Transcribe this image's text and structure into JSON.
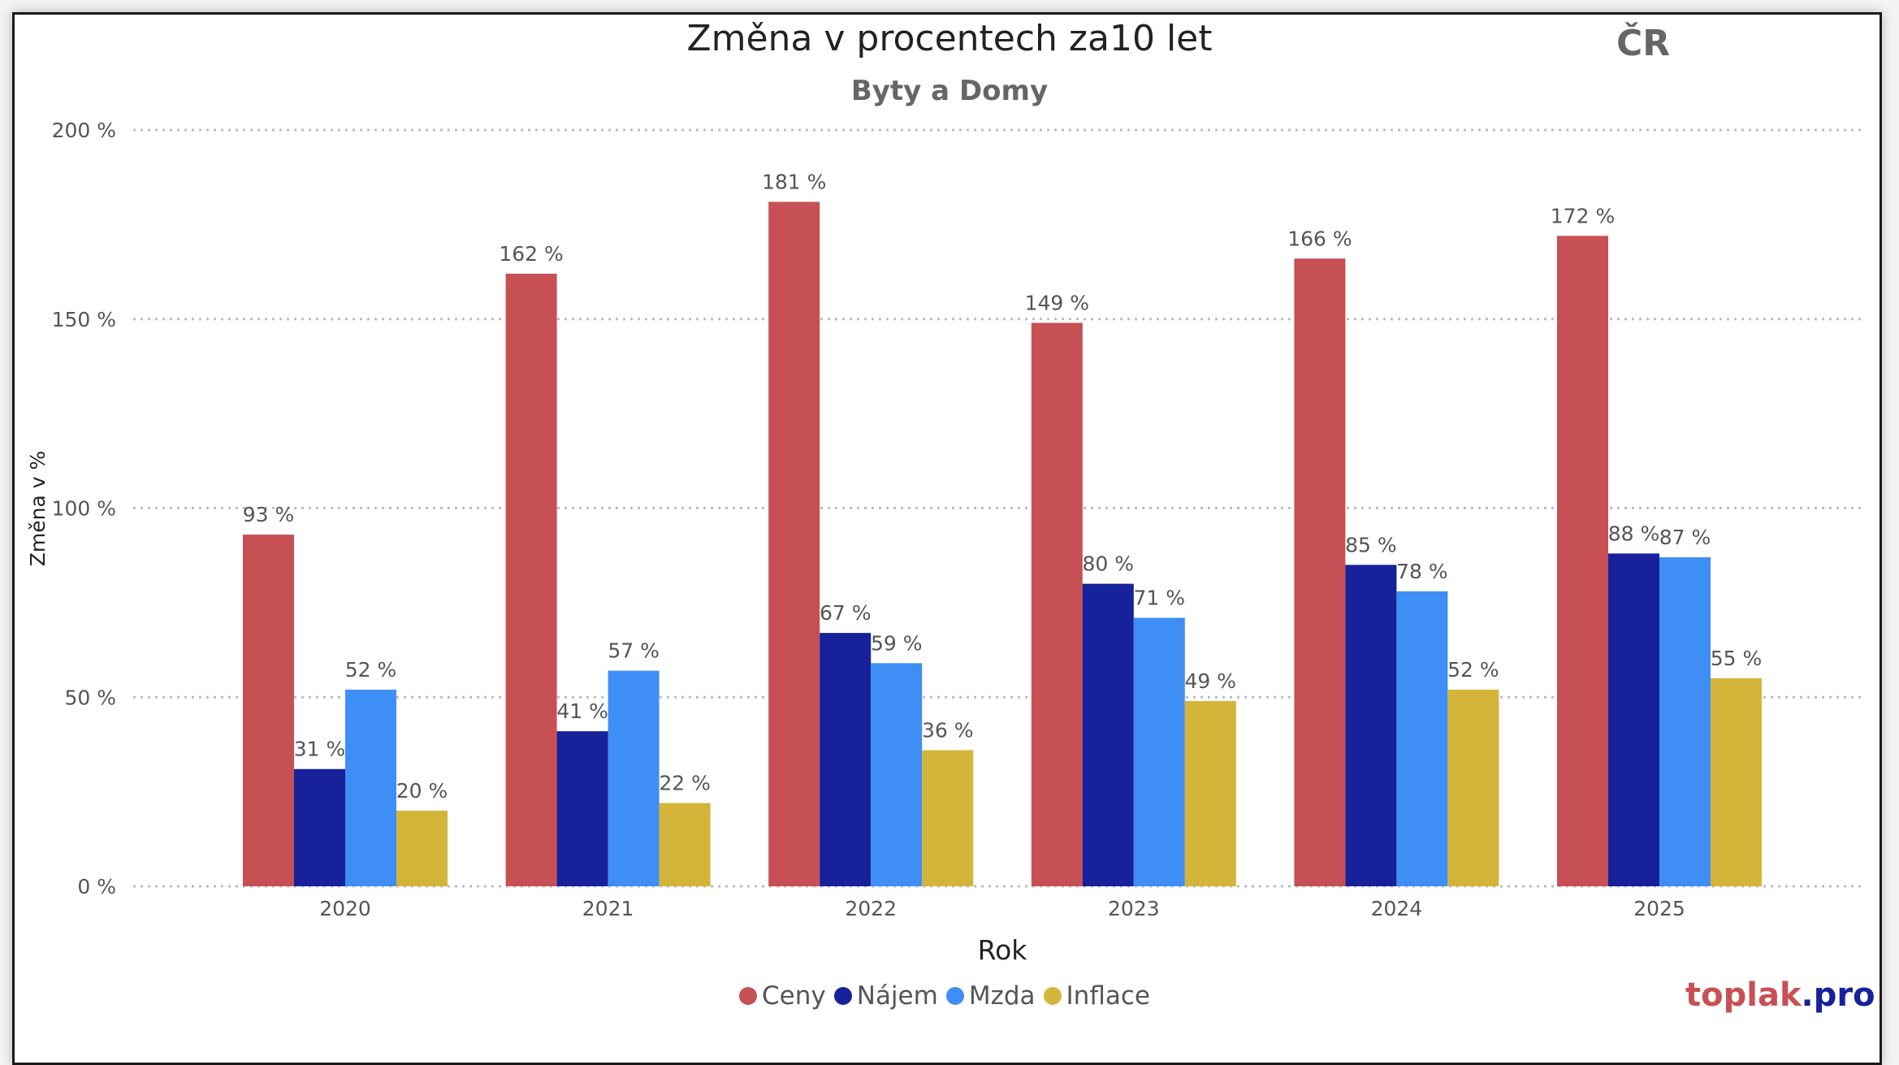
{
  "header": {
    "title": "Změna v procentech za10 let",
    "region": "ČR",
    "subtitle": "Byty a Domy"
  },
  "brand": {
    "part1": "toplak",
    "part2": ".pro"
  },
  "chart_data": {
    "type": "bar",
    "title": "Změna v procentech za10 let",
    "subtitle": "Byty a Domy",
    "xlabel": "Rok",
    "ylabel": "Změna v %",
    "ylim": [
      0,
      200
    ],
    "yticks": [
      0,
      50,
      100,
      150,
      200
    ],
    "ytick_labels": [
      "0 %",
      "50 %",
      "100 %",
      "150 %",
      "200 %"
    ],
    "grid": true,
    "legend_position": "bottom-center",
    "categories": [
      "2020",
      "2021",
      "2022",
      "2023",
      "2024",
      "2025"
    ],
    "series": [
      {
        "name": "Ceny",
        "color": "#C75055",
        "values": [
          93,
          162,
          181,
          149,
          166,
          172
        ]
      },
      {
        "name": "Nájem",
        "color": "#16219A",
        "values": [
          31,
          41,
          67,
          80,
          85,
          88
        ]
      },
      {
        "name": "Mzda",
        "color": "#3F8EF5",
        "values": [
          52,
          57,
          59,
          71,
          78,
          87
        ]
      },
      {
        "name": "Inflace",
        "color": "#D4B53A",
        "values": [
          20,
          22,
          36,
          49,
          52,
          55
        ]
      }
    ],
    "value_suffix": " %"
  }
}
